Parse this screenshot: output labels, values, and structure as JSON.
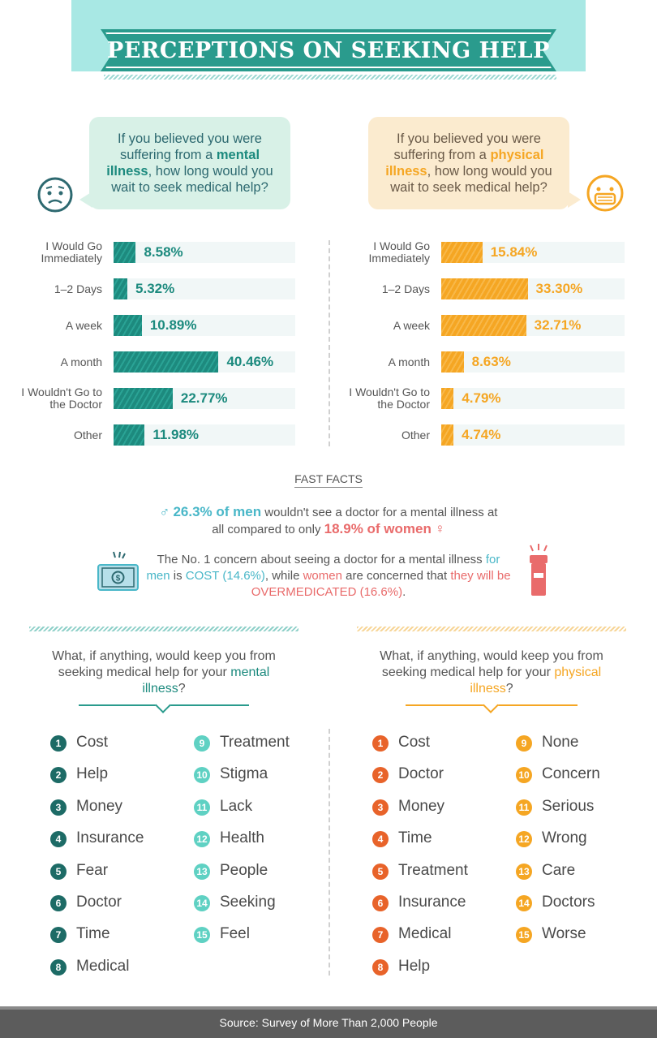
{
  "title": "PERCEPTIONS ON SEEKING HELP",
  "left_question": {
    "pre": "If you believed you were suffering from a ",
    "highlight": "mental illness",
    "post": ", how long would you wait to seek medical help?"
  },
  "right_question": {
    "pre": "If you believed you were suffering from a ",
    "highlight": "physical illness",
    "post": ", how long would you wait to seek medical help?"
  },
  "chart_data": [
    {
      "type": "bar",
      "orientation": "horizontal",
      "categories": [
        "I Would Go Immediately",
        "1–2 Days",
        "A week",
        "A month",
        "I Wouldn't Go to the Doctor",
        "Other"
      ],
      "values": [
        8.58,
        5.32,
        10.89,
        40.46,
        22.77,
        11.98
      ],
      "labels": [
        "8.58%",
        "5.32%",
        "10.89%",
        "40.46%",
        "22.77%",
        "11.98%"
      ],
      "color": "#1d8a7e",
      "xlim": [
        0,
        100
      ]
    },
    {
      "type": "bar",
      "orientation": "horizontal",
      "categories": [
        "I Would Go Immediately",
        "1–2 Days",
        "A week",
        "A month",
        "I Wouldn't Go to the Doctor",
        "Other"
      ],
      "values": [
        15.84,
        33.3,
        32.71,
        8.63,
        4.79,
        4.74
      ],
      "labels": [
        "15.84%",
        "33.30%",
        "32.71%",
        "8.63%",
        "4.79%",
        "4.74%"
      ],
      "color": "#f5a623",
      "xlim": [
        0,
        100
      ]
    }
  ],
  "fast_facts": {
    "title": "FAST FACTS",
    "fact1": {
      "men": "26.3% of men",
      "mid": " wouldn't see a doctor for a mental illness at all compared to only ",
      "women": "18.9% of women"
    },
    "fact2": {
      "pre": "The No. 1 concern about seeing a doctor for a mental illness ",
      "men": "for men",
      "is": " is ",
      "cost": "COST (14.6%)",
      "while": ", while ",
      "women": "women",
      "concerned": " are concerned that ",
      "over": "they will be OVERMEDICATED (16.6%)",
      "end": "."
    }
  },
  "left_list": {
    "question_pre": "What, if anything, would keep you from seeking medical help for your ",
    "question_hl": "mental illness",
    "question_end": "?",
    "items": [
      "Cost",
      "Help",
      "Money",
      "Insurance",
      "Fear",
      "Doctor",
      "Time",
      "Medical",
      "Treatment",
      "Stigma",
      "Lack",
      "Health",
      "People",
      "Seeking",
      "Feel"
    ]
  },
  "right_list": {
    "question_pre": "What, if anything, would keep you from seeking medical help for your ",
    "question_hl": "physical illness",
    "question_end": "?",
    "items": [
      "Cost",
      "Doctor",
      "Money",
      "Time",
      "Treatment",
      "Insurance",
      "Medical",
      "Help",
      "None",
      "Concern",
      "Serious",
      "Wrong",
      "Care",
      "Doctors",
      "Worse"
    ]
  },
  "footer": "Source: Survey of More Than 2,000 People",
  "colors": {
    "teal": "#1d8a7e",
    "orange": "#f5a623",
    "men": "#49b7c8",
    "women": "#e96b6b"
  }
}
